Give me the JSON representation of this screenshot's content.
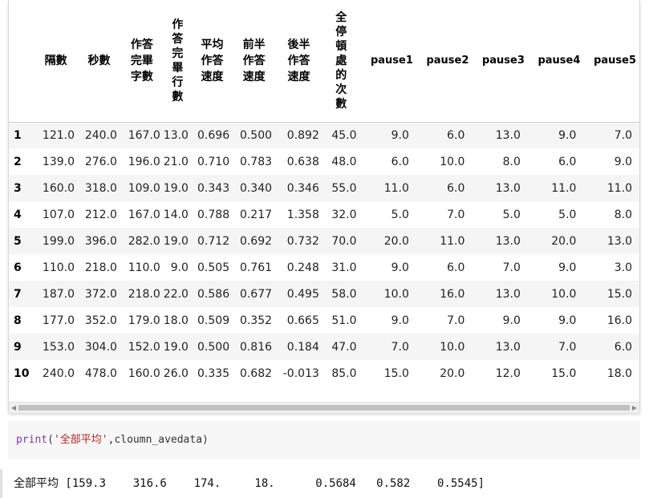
{
  "table": {
    "columns": [
      {
        "label": "隔數",
        "vertical": false
      },
      {
        "label": "秒數",
        "vertical": false
      },
      {
        "label": "作答\n完畢\n字數",
        "vertical": false
      },
      {
        "label": "作答完畢行數",
        "vertical": true
      },
      {
        "label": "平均\n作答\n速度",
        "vertical": false
      },
      {
        "label": "前半\n作答\n速度",
        "vertical": false
      },
      {
        "label": "後半\n作答\n速度",
        "vertical": false
      },
      {
        "label": "全停頓處的次數",
        "vertical": true
      },
      {
        "label": "pause1",
        "vertical": false
      },
      {
        "label": "pause2",
        "vertical": false
      },
      {
        "label": "pause3",
        "vertical": false
      },
      {
        "label": "pause4",
        "vertical": false
      },
      {
        "label": "pause5",
        "vertical": false
      }
    ],
    "rows": [
      {
        "index": "1",
        "cells": [
          "121.0",
          "240.0",
          "167.0",
          "13.0",
          "0.696",
          "0.500",
          "0.892",
          "45.0",
          "9.0",
          "6.0",
          "13.0",
          "9.0",
          "7.0"
        ]
      },
      {
        "index": "2",
        "cells": [
          "139.0",
          "276.0",
          "196.0",
          "21.0",
          "0.710",
          "0.783",
          "0.638",
          "48.0",
          "6.0",
          "10.0",
          "8.0",
          "6.0",
          "9.0"
        ]
      },
      {
        "index": "3",
        "cells": [
          "160.0",
          "318.0",
          "109.0",
          "19.0",
          "0.343",
          "0.340",
          "0.346",
          "55.0",
          "11.0",
          "6.0",
          "13.0",
          "11.0",
          "11.0"
        ]
      },
      {
        "index": "4",
        "cells": [
          "107.0",
          "212.0",
          "167.0",
          "14.0",
          "0.788",
          "0.217",
          "1.358",
          "32.0",
          "5.0",
          "7.0",
          "5.0",
          "5.0",
          "8.0"
        ]
      },
      {
        "index": "5",
        "cells": [
          "199.0",
          "396.0",
          "282.0",
          "19.0",
          "0.712",
          "0.692",
          "0.732",
          "70.0",
          "20.0",
          "11.0",
          "13.0",
          "20.0",
          "13.0"
        ]
      },
      {
        "index": "6",
        "cells": [
          "110.0",
          "218.0",
          "110.0",
          "9.0",
          "0.505",
          "0.761",
          "0.248",
          "31.0",
          "9.0",
          "6.0",
          "7.0",
          "9.0",
          "3.0"
        ]
      },
      {
        "index": "7",
        "cells": [
          "187.0",
          "372.0",
          "218.0",
          "22.0",
          "0.586",
          "0.677",
          "0.495",
          "58.0",
          "10.0",
          "16.0",
          "13.0",
          "10.0",
          "15.0"
        ]
      },
      {
        "index": "8",
        "cells": [
          "177.0",
          "352.0",
          "179.0",
          "18.0",
          "0.509",
          "0.352",
          "0.665",
          "51.0",
          "9.0",
          "7.0",
          "9.0",
          "9.0",
          "16.0"
        ]
      },
      {
        "index": "9",
        "cells": [
          "153.0",
          "304.0",
          "152.0",
          "19.0",
          "0.500",
          "0.816",
          "0.184",
          "47.0",
          "7.0",
          "10.0",
          "13.0",
          "7.0",
          "6.0"
        ]
      },
      {
        "index": "10",
        "cells": [
          "240.0",
          "478.0",
          "160.0",
          "26.0",
          "0.335",
          "0.682",
          "-0.013",
          "85.0",
          "15.0",
          "20.0",
          "12.0",
          "15.0",
          "18.0"
        ]
      }
    ]
  },
  "code": {
    "fn": "print",
    "open": "(",
    "str": "'全部平均'",
    "rest": ",cloumn_avedata)"
  },
  "output": {
    "text": "全部平均 [159.3    316.6    174.     18.      0.5684   0.582    0.5545]"
  }
}
